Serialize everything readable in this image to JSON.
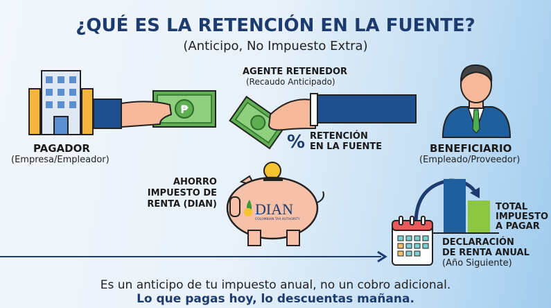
{
  "title": "¿QUÉ ES LA RETENCIÓN EN LA FUENTE?",
  "subtitle": "(Anticipo, No Impuesto Extra)",
  "pagador": {
    "label": "PAGADOR",
    "detail": "(Empresa/Empleador)"
  },
  "agente": {
    "label": "AGENTE RETENEDOR",
    "detail": "(Recaudo Anticipado)"
  },
  "retencion": {
    "symbol": "%",
    "line1": "RETENCIÓN",
    "line2": "EN LA FUENTE"
  },
  "beneficiario": {
    "label": "BENEFICIARIO",
    "detail": "(Empleado/Proveedor)"
  },
  "ahorro": {
    "line1": "AHORRO",
    "line2": "IMPUESTO DE",
    "line3": "RENTA (DIAN)"
  },
  "dian_logo": {
    "text": "DIAN",
    "tagline": "COLOMBIAN TAX AUTHORITY"
  },
  "total": {
    "line1": "TOTAL",
    "line2": "IMPUESTO",
    "line3": "A PAGAR"
  },
  "declaracion": {
    "line1": "DECLARACIÓN",
    "line2": "DE RENTA ANUAL",
    "line3": "(Año Siguiente)"
  },
  "footer": {
    "line1": "Es un anticipo de tu impuesto anual, no un cobro adicional.",
    "line2": "Lo que pagas hoy, lo descuentas mañana."
  },
  "colors": {
    "navy": "#1d3b6e",
    "money_green": "#5fae52",
    "bar_blue": "#1f5f9e",
    "bar_green": "#8cc63f",
    "piggy": "#f6c1a8",
    "calendar_red": "#e85a5a"
  }
}
